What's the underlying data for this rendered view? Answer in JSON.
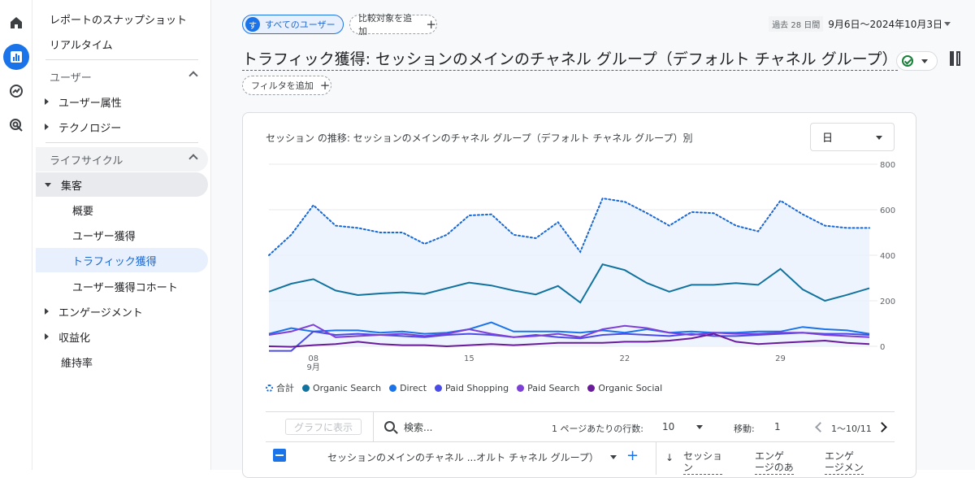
{
  "nav": {
    "items": [
      {
        "label": "レポートのスナップショット"
      },
      {
        "label": "リアルタイム"
      }
    ],
    "section_user": "ユーザー",
    "user_items": [
      {
        "label": "ユーザー属性"
      },
      {
        "label": "テクノロジー"
      }
    ],
    "section_lifecycle": "ライフサイクル",
    "acquisition": "集客",
    "acquisition_items": [
      {
        "label": "概要"
      },
      {
        "label": "ユーザー獲得"
      },
      {
        "label": "トラフィック獲得"
      },
      {
        "label": "ユーザー獲得コホート"
      }
    ],
    "lifecycle_items": [
      {
        "label": "エンゲージメント"
      },
      {
        "label": "収益化"
      },
      {
        "label": "維持率"
      }
    ]
  },
  "header": {
    "segment_avatar": "す",
    "segment_label": "すべてのユーザー",
    "compare_label": "比較対象を追加",
    "date_prefix": "過去 28 日間",
    "date_range": "9月6日～2024年10月3日",
    "title": "トラフィック獲得: セッションのメインのチャネル グループ（デフォルト チャネル グループ）",
    "filter_label": "フィルタを追加"
  },
  "card": {
    "title": "セッション の推移: セッションのメインのチャネル グループ（デフォルト チャネル グループ）別",
    "granularity": "日"
  },
  "chart_data": {
    "type": "line",
    "x_tick_labels": [
      "08",
      "9月",
      "15",
      "22",
      "29"
    ],
    "y_ticks": [
      0,
      200,
      400,
      600,
      800
    ],
    "ylim": [
      0,
      800
    ],
    "x": [
      "9/6",
      "9/7",
      "9/8",
      "9/9",
      "9/10",
      "9/11",
      "9/12",
      "9/13",
      "9/14",
      "9/15",
      "9/16",
      "9/17",
      "9/18",
      "9/19",
      "9/20",
      "9/21",
      "9/22",
      "9/23",
      "9/24",
      "9/25",
      "9/26",
      "9/27",
      "9/28",
      "9/29",
      "9/30",
      "10/1",
      "10/2",
      "10/3"
    ],
    "series": [
      {
        "name": "合計",
        "color": "#1967d2",
        "style": "dotted",
        "fill": true,
        "values": [
          400,
          490,
          620,
          530,
          520,
          500,
          500,
          450,
          490,
          575,
          580,
          490,
          475,
          545,
          415,
          650,
          635,
          585,
          530,
          590,
          585,
          530,
          505,
          640,
          580,
          530,
          520,
          520
        ]
      },
      {
        "name": "Organic Search",
        "color": "#12739e",
        "values": [
          240,
          275,
          295,
          245,
          225,
          232,
          237,
          230,
          255,
          280,
          267,
          245,
          228,
          265,
          192,
          360,
          335,
          278,
          240,
          270,
          270,
          278,
          270,
          340,
          250,
          200,
          226,
          255
        ]
      },
      {
        "name": "Direct",
        "color": "#1a73e8",
        "values": [
          55,
          80,
          65,
          70,
          70,
          60,
          65,
          55,
          60,
          75,
          105,
          65,
          65,
          65,
          60,
          70,
          60,
          75,
          60,
          65,
          60,
          60,
          65,
          65,
          85,
          75,
          70,
          55
        ]
      },
      {
        "name": "Paid Shopping",
        "color": "#4b4be8",
        "values": [
          -20,
          -20,
          65,
          50,
          55,
          50,
          45,
          40,
          50,
          55,
          50,
          40,
          50,
          40,
          35,
          50,
          55,
          50,
          45,
          55,
          45,
          45,
          50,
          55,
          60,
          55,
          55,
          50
        ]
      },
      {
        "name": "Paid Search",
        "color": "#7e3fd6",
        "values": [
          50,
          65,
          95,
          40,
          45,
          50,
          55,
          45,
          55,
          75,
          55,
          40,
          45,
          55,
          40,
          75,
          90,
          80,
          60,
          50,
          60,
          55,
          55,
          60,
          60,
          50,
          45,
          40
        ]
      },
      {
        "name": "Organic Social",
        "color": "#6a1b9a",
        "values": [
          0,
          -2,
          5,
          10,
          20,
          10,
          5,
          5,
          0,
          5,
          10,
          5,
          10,
          15,
          15,
          15,
          20,
          20,
          25,
          35,
          55,
          20,
          10,
          15,
          20,
          25,
          15,
          10
        ]
      }
    ]
  },
  "table": {
    "show_chart_label": "グラフに表示",
    "search_placeholder": "検索...",
    "rows_per_page_label": "1 ページあたりの行数:",
    "rows_per_page": "10",
    "goto_label": "移動:",
    "goto_value": "1",
    "page_range": "1～10/11",
    "dimension_label": "セッションのメインのチャネル ...オルト チャネル グループ）",
    "metric_headers": [
      "セッション",
      "エンゲージのあったセッション数",
      "エンゲージメント率"
    ]
  }
}
